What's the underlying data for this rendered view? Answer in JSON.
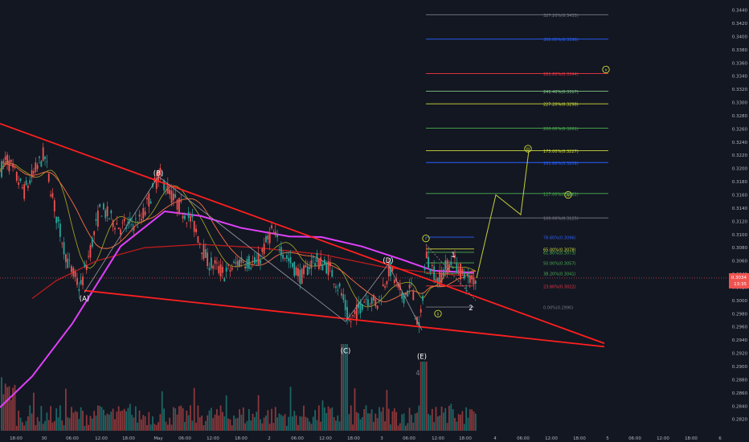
{
  "chart_data": {
    "type": "candlestick",
    "y_axis": {
      "range": [
        0.2805,
        0.3448
      ],
      "ticks": [
        "0.3440",
        "0.3420",
        "0.3400",
        "0.3380",
        "0.3360",
        "0.3340",
        "0.3320",
        "0.3300",
        "0.3280",
        "0.3260",
        "0.3240",
        "0.3220",
        "0.3200",
        "0.3180",
        "0.3160",
        "0.3140",
        "0.3120",
        "0.3100",
        "0.3080",
        "0.3060",
        "0.3040",
        "0.3020",
        "0.3000",
        "0.2980",
        "0.2960",
        "0.2940",
        "0.2920",
        "0.2900",
        "0.2880",
        "0.2860",
        "0.2840",
        "0.2820"
      ],
      "last_price": "0.3034",
      "countdown": "13:35"
    },
    "x_axis": {
      "ticks": [
        "18:00",
        "30",
        "06:00",
        "12:00",
        "18:00",
        "May",
        "06:00",
        "12:00",
        "18:00",
        "2",
        "06:00",
        "12:00",
        "18:00",
        "3",
        "06:00",
        "12:00",
        "18:00",
        "4",
        "06:00",
        "12:00",
        "18:00",
        "5",
        "06:00",
        "12:00",
        "18:00",
        "6"
      ]
    },
    "fib_levels": [
      {
        "label": "327.20%(0.3433)",
        "value": 0.3433,
        "color": "#787b86"
      },
      {
        "label": "300.00%(0.3396)",
        "value": 0.3396,
        "color": "#2962ff"
      },
      {
        "label": "261.80%(0.3344)",
        "value": 0.3344,
        "color": "#f23645"
      },
      {
        "label": "241.40%(0.3317)",
        "value": 0.3317,
        "color": "#81c784"
      },
      {
        "label": "227.20%(0.3298)",
        "value": 0.3298,
        "color": "#cddc39"
      },
      {
        "label": "200.00%(0.3261)",
        "value": 0.3261,
        "color": "#4caf50"
      },
      {
        "label": "175.00%(0.3227)",
        "value": 0.3227,
        "color": "#cddc39"
      },
      {
        "label": "161.80%(0.3209)",
        "value": 0.3209,
        "color": "#2962ff"
      },
      {
        "label": "127.00%(0.3162)",
        "value": 0.3162,
        "color": "#4caf50"
      },
      {
        "label": "100.00%(0.3125)",
        "value": 0.3125,
        "color": "#787b86"
      },
      {
        "label": "78.60%(0.3096)",
        "value": 0.3096,
        "color": "#2962ff"
      },
      {
        "label": "65.00%(0.3078)",
        "value": 0.3078,
        "color": "#cddc39"
      },
      {
        "label": "61.80%(0.3073)",
        "value": 0.3073,
        "color": "#4caf50"
      },
      {
        "label": "50.00%(0.3057)",
        "value": 0.3057,
        "color": "#4caf50"
      },
      {
        "label": "38.20%(0.3041)",
        "value": 0.3041,
        "color": "#4caf50"
      },
      {
        "label": "23.60%(0.3022)",
        "value": 0.3022,
        "color": "#f23645"
      },
      {
        "label": "0.00%(0.2990)",
        "value": 0.299,
        "color": "#787b86"
      }
    ],
    "wave_labels": [
      {
        "text": "(A)",
        "price": 0.3003,
        "color": "#ffffff"
      },
      {
        "text": "(B)",
        "price": 0.3193,
        "color": "#ffffff"
      },
      {
        "text": "(C)",
        "price": 0.2924,
        "color": "#ffffff"
      },
      {
        "text": "(D)",
        "price": 0.3061,
        "color": "#ffffff"
      },
      {
        "text": "(E)",
        "price": 0.2915,
        "color": "#ffffff"
      },
      {
        "text": "1",
        "price": 0.3069,
        "color": "#ffffff"
      },
      {
        "text": "2",
        "price": 0.2989,
        "color": "#ffffff"
      },
      {
        "text": "4",
        "price": 0.289,
        "color": "#787b86"
      },
      {
        "text": "i",
        "price": 0.3094,
        "color": "#cddc39",
        "circled": true
      },
      {
        "text": "ii",
        "price": 0.298,
        "color": "#cddc39",
        "circled": true
      },
      {
        "text": "iii",
        "price": 0.323,
        "color": "#cddc39",
        "circled": true
      },
      {
        "text": "iv",
        "price": 0.316,
        "color": "#cddc39",
        "circled": true
      },
      {
        "text": "v",
        "price": 0.335,
        "color": "#cddc39",
        "circled": true
      }
    ],
    "projection_path_prices": [
      0.3034,
      0.316,
      0.313,
      0.3227
    ],
    "triangle_upper_prices": [
      0.3268,
      0.2935
    ],
    "triangle_lower_prices": [
      0.3015,
      0.293
    ],
    "colors": {
      "up": "#26a69a",
      "down": "#ef5350",
      "upper_line": "#ff1f1f",
      "ma_magenta": "#e040fb",
      "ma_red": "#b71c1c",
      "ma_olive": "#9e9d24"
    }
  }
}
